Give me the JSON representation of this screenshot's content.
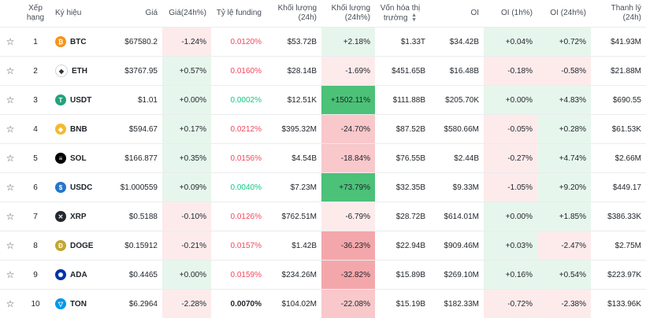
{
  "headers": {
    "rank": "Xếp hạng",
    "symbol": "Ký hiệu",
    "price": "Giá",
    "price_change": "Giá(24h%)",
    "funding": "Tỷ lệ funding",
    "volume": "Khối lượng (24h)",
    "volume_change": "Khối lượng (24h%)",
    "market_cap_line1": "Vốn hóa thị",
    "market_cap_line2": "trường",
    "oi": "OI",
    "oi_1h": "OI (1h%)",
    "oi_24h": "OI (24h%)",
    "liquidation": "Thanh lý (24h)"
  },
  "sort_icon": "sort-arrows-icon",
  "star_icon": "star-outline-icon",
  "colors": {
    "up_text": "#0ecb81",
    "down_text": "#f6465d",
    "up_bg_light": "#e7f6ec",
    "down_bg_light": "#fdebec",
    "up_bg_mid": "#8bdcae",
    "up_bg_strong": "#4cc178",
    "down_bg_mid": "#f8c8cb",
    "down_bg_strong": "#f4a7ab"
  },
  "rows": [
    {
      "rank": "1",
      "symbol": "BTC",
      "icon": "bitcoin-icon",
      "icon_color": "#f7931a",
      "icon_glyph": "₿",
      "price": "$67580.2",
      "price_change": "-1.24%",
      "funding": "0.0120%",
      "funding_dir": "neg",
      "volume": "$53.72B",
      "volume_change": "+2.18%",
      "market_cap": "$1.33T",
      "oi": "$34.42B",
      "oi_1h": "+0.04%",
      "oi_24h": "+0.72%",
      "liquidation": "$41.93M"
    },
    {
      "rank": "2",
      "symbol": "ETH",
      "icon": "ethereum-icon",
      "icon_color": "#ffffff",
      "icon_glyph": "◆",
      "price": "$3767.95",
      "price_change": "+0.57%",
      "funding": "0.0160%",
      "funding_dir": "neg",
      "volume": "$28.14B",
      "volume_change": "-1.69%",
      "market_cap": "$451.65B",
      "oi": "$16.48B",
      "oi_1h": "-0.18%",
      "oi_24h": "-0.58%",
      "liquidation": "$21.88M"
    },
    {
      "rank": "3",
      "symbol": "USDT",
      "icon": "tether-icon",
      "icon_color": "#26a17b",
      "icon_glyph": "T",
      "price": "$1.01",
      "price_change": "+0.00%",
      "funding": "0.0002%",
      "funding_dir": "pos",
      "volume": "$12.51K",
      "volume_change": "+1502.11%",
      "market_cap": "$111.88B",
      "oi": "$205.70K",
      "oi_1h": "+0.00%",
      "oi_24h": "+4.83%",
      "liquidation": "$690.55"
    },
    {
      "rank": "4",
      "symbol": "BNB",
      "icon": "bnb-icon",
      "icon_color": "#f3ba2f",
      "icon_glyph": "◈",
      "price": "$594.67",
      "price_change": "+0.17%",
      "funding": "0.0212%",
      "funding_dir": "neg",
      "volume": "$395.32M",
      "volume_change": "-24.70%",
      "market_cap": "$87.52B",
      "oi": "$580.66M",
      "oi_1h": "-0.05%",
      "oi_24h": "+0.28%",
      "liquidation": "$61.53K"
    },
    {
      "rank": "5",
      "symbol": "SOL",
      "icon": "solana-icon",
      "icon_color": "#000000",
      "icon_glyph": "≡",
      "price": "$166.877",
      "price_change": "+0.35%",
      "funding": "0.0156%",
      "funding_dir": "neg",
      "volume": "$4.54B",
      "volume_change": "-18.84%",
      "market_cap": "$76.55B",
      "oi": "$2.44B",
      "oi_1h": "-0.27%",
      "oi_24h": "+4.74%",
      "liquidation": "$2.66M"
    },
    {
      "rank": "6",
      "symbol": "USDC",
      "icon": "usdc-icon",
      "icon_color": "#2775ca",
      "icon_glyph": "$",
      "price": "$1.000559",
      "price_change": "+0.09%",
      "funding": "0.0040%",
      "funding_dir": "pos",
      "volume": "$7.23M",
      "volume_change": "+73.79%",
      "market_cap": "$32.35B",
      "oi": "$9.33M",
      "oi_1h": "-1.05%",
      "oi_24h": "+9.20%",
      "liquidation": "$449.17"
    },
    {
      "rank": "7",
      "symbol": "XRP",
      "icon": "xrp-icon",
      "icon_color": "#23292f",
      "icon_glyph": "✕",
      "price": "$0.5188",
      "price_change": "-0.10%",
      "funding": "0.0126%",
      "funding_dir": "neg",
      "volume": "$762.51M",
      "volume_change": "-6.79%",
      "market_cap": "$28.72B",
      "oi": "$614.01M",
      "oi_1h": "+0.00%",
      "oi_24h": "+1.85%",
      "liquidation": "$386.33K"
    },
    {
      "rank": "8",
      "symbol": "DOGE",
      "icon": "dogecoin-icon",
      "icon_color": "#c2a633",
      "icon_glyph": "Ð",
      "price": "$0.15912",
      "price_change": "-0.21%",
      "funding": "0.0157%",
      "funding_dir": "neg",
      "volume": "$1.42B",
      "volume_change": "-36.23%",
      "market_cap": "$22.94B",
      "oi": "$909.46M",
      "oi_1h": "+0.03%",
      "oi_24h": "-2.47%",
      "liquidation": "$2.75M"
    },
    {
      "rank": "9",
      "symbol": "ADA",
      "icon": "cardano-icon",
      "icon_color": "#0033ad",
      "icon_glyph": "✺",
      "price": "$0.4465",
      "price_change": "+0.00%",
      "funding": "0.0159%",
      "funding_dir": "neg",
      "volume": "$234.26M",
      "volume_change": "-32.82%",
      "market_cap": "$15.89B",
      "oi": "$269.10M",
      "oi_1h": "+0.16%",
      "oi_24h": "+0.54%",
      "liquidation": "$223.97K"
    },
    {
      "rank": "10",
      "symbol": "TON",
      "icon": "toncoin-icon",
      "icon_color": "#0098ea",
      "icon_glyph": "▽",
      "price": "$6.2964",
      "price_change": "-2.28%",
      "funding": "0.0070%",
      "funding_dir": "plain",
      "volume": "$104.02M",
      "volume_change": "-22.08%",
      "market_cap": "$15.19B",
      "oi": "$182.33M",
      "oi_1h": "-0.72%",
      "oi_24h": "-2.38%",
      "liquidation": "$133.96K"
    }
  ]
}
